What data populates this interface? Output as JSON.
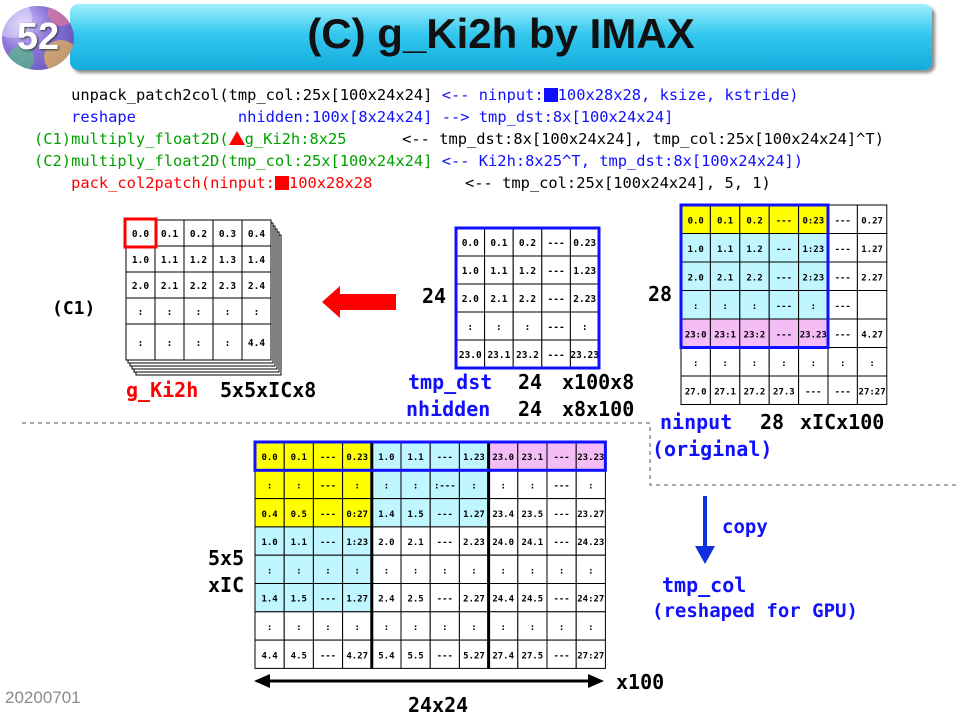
{
  "slide_number": "52",
  "title": "(C) g_Ki2h by IMAX",
  "code": [
    {
      "indent": "    ",
      "text": "unpack_patch2col(tmp_col:25x[100x24x24] ",
      "text_color": "black",
      "rest_before": "<-- ninput:",
      "rest_after": "100x28x28, ksize, kstride)",
      "rest_color": "blue",
      "marker": "square",
      "marker_color": "#1010ff"
    },
    {
      "indent": "    ",
      "text": "reshape           nhidden:100x[8x24x24] ",
      "text_color": "blue",
      "rest_before": "--> tmp_dst:8x[100x24x24]",
      "rest_after": "",
      "rest_color": "blue",
      "marker": "",
      "marker_color": ""
    },
    {
      "indent": "",
      "text_before": "(C1)multiply_float2D(",
      "text_after": "g_Ki2h:8x25      ",
      "text_color": "green",
      "marker": "triangle",
      "marker_color": "#ff0000",
      "rest_before": "<-- tmp_dst:8x[100x24x24], tmp_col:25x[100x24x24]^T)",
      "rest_after": "",
      "rest_color": "black"
    },
    {
      "indent": "",
      "text": "(C2)multiply_float2D(tmp_col:25x[100x24x24] ",
      "text_color": "green",
      "rest_before": "<-- Ki2h:8x25^T, tmp_dst:8x[100x24x24])",
      "rest_after": "",
      "rest_color": "blue",
      "marker": "",
      "marker_color": ""
    },
    {
      "indent": "    ",
      "text_before": "pack_col2patch(ninput:",
      "text_after": "100x28x28          ",
      "text_color": "red",
      "marker": "square",
      "marker_color": "#ff0000",
      "rest_before": "<-- tmp_col:25x[100x24x24], 5, 1)",
      "rest_after": "",
      "rest_color": "black"
    }
  ],
  "labels": {
    "c1": "(C1)",
    "g_ki2h": "g_Ki2h",
    "g_ki2h_dims": "5x5xICx8",
    "dst_side": "24",
    "tmp_dst": "tmp_dst",
    "nhidden": "nhidden",
    "dst_dim_a": "24",
    "dst_dim_b": "24",
    "dst_mul_a": "x100x8",
    "dst_mul_b": "x8x100",
    "input_side": "28",
    "ninput": "ninput",
    "ninput_dim": "28",
    "ninput_mul": "xICx100",
    "ninput_original": "(original)",
    "copy": "copy",
    "tmp_col": "tmp_col",
    "tmp_col_note": "(reshaped for GPU)",
    "rows_label_1": "5x5",
    "rows_label_2": "xIC",
    "x100": "x100",
    "width_label": "24x24"
  },
  "kernel_grid": [
    [
      "0.0",
      "0.1",
      "0.2",
      "0.3",
      "0.4"
    ],
    [
      "1.0",
      "1.1",
      "1.2",
      "1.3",
      "1.4"
    ],
    [
      "2.0",
      "2.1",
      "2.2",
      "2.3",
      "2.4"
    ],
    [
      ":",
      ":",
      ":",
      ":",
      ":"
    ],
    [
      ":",
      ":",
      ":",
      ":",
      "4.4"
    ]
  ],
  "dst_grid": [
    [
      "0.0",
      "0.1",
      "0.2",
      "---",
      "0.23"
    ],
    [
      "1.0",
      "1.1",
      "1.2",
      "---",
      "1.23"
    ],
    [
      "2.0",
      "2.1",
      "2.2",
      "---",
      "2.23"
    ],
    [
      ":",
      ":",
      ":",
      "---",
      ":"
    ],
    [
      "23.0",
      "23.1",
      "23.2",
      "---",
      "23.23"
    ]
  ],
  "input_grid": [
    [
      "0.0",
      "0.1",
      "0.2",
      "---",
      "0:23",
      "---",
      "0.27"
    ],
    [
      "1.0",
      "1.1",
      "1.2",
      "---",
      "1:23",
      "---",
      "1.27"
    ],
    [
      "2.0",
      "2.1",
      "2.2",
      "---",
      "2:23",
      "---",
      "2.27"
    ],
    [
      ":",
      ":",
      ":",
      "---",
      ":",
      "---",
      ""
    ],
    [
      "23:0",
      "23:1",
      "23:2",
      "---",
      "23.23",
      "---",
      "4.27"
    ],
    [
      ":",
      ":",
      ":",
      ":",
      ":",
      ":",
      ":"
    ],
    [
      "27.0",
      "27.1",
      "27.2",
      "27.3",
      "---",
      "---",
      "27:27"
    ]
  ],
  "col_grid": [
    [
      "0.0",
      "0.1",
      "---",
      "0.23",
      "1.0",
      "1.1",
      "---",
      "1.23",
      "23.0",
      "23.1",
      "---",
      "23.23"
    ],
    [
      ":",
      ":",
      "---",
      ":",
      ":",
      ":",
      ":---",
      ":",
      ":",
      ":",
      "---",
      ":"
    ],
    [
      "0.4",
      "0.5",
      "---",
      "0:27",
      "1.4",
      "1.5",
      "---",
      "1.27",
      "23.4",
      "23.5",
      "---",
      "23.27"
    ],
    [
      "1.0",
      "1.1",
      "---",
      "1:23",
      "2.0",
      "2.1",
      "---",
      "2.23",
      "24.0",
      "24.1",
      "---",
      "24.23"
    ],
    [
      ":",
      ":",
      ":",
      ":",
      ":",
      ":",
      ":",
      ":",
      ":",
      ":",
      ":",
      ":"
    ],
    [
      "1.4",
      "1.5",
      "---",
      "1.27",
      "2.4",
      "2.5",
      "---",
      "2.27",
      "24.4",
      "24.5",
      "---",
      "24:27"
    ],
    [
      ":",
      ":",
      ":",
      ":",
      ":",
      ":",
      ":",
      ":",
      ":",
      ":",
      ":",
      ":"
    ],
    [
      "4.4",
      "4.5",
      "---",
      "4.27",
      "5.4",
      "5.5",
      "---",
      "5.27",
      "27.4",
      "27.5",
      "---",
      "27:27"
    ]
  ],
  "colors": {
    "yellow": "#ffff00",
    "cyan": "#bff6ff",
    "pink": "#f4bdf6",
    "blue": "#1010ff",
    "red": "#ff0000",
    "green": "#00a000",
    "arrow_blue": "#1030e0"
  },
  "footer": "20200701"
}
